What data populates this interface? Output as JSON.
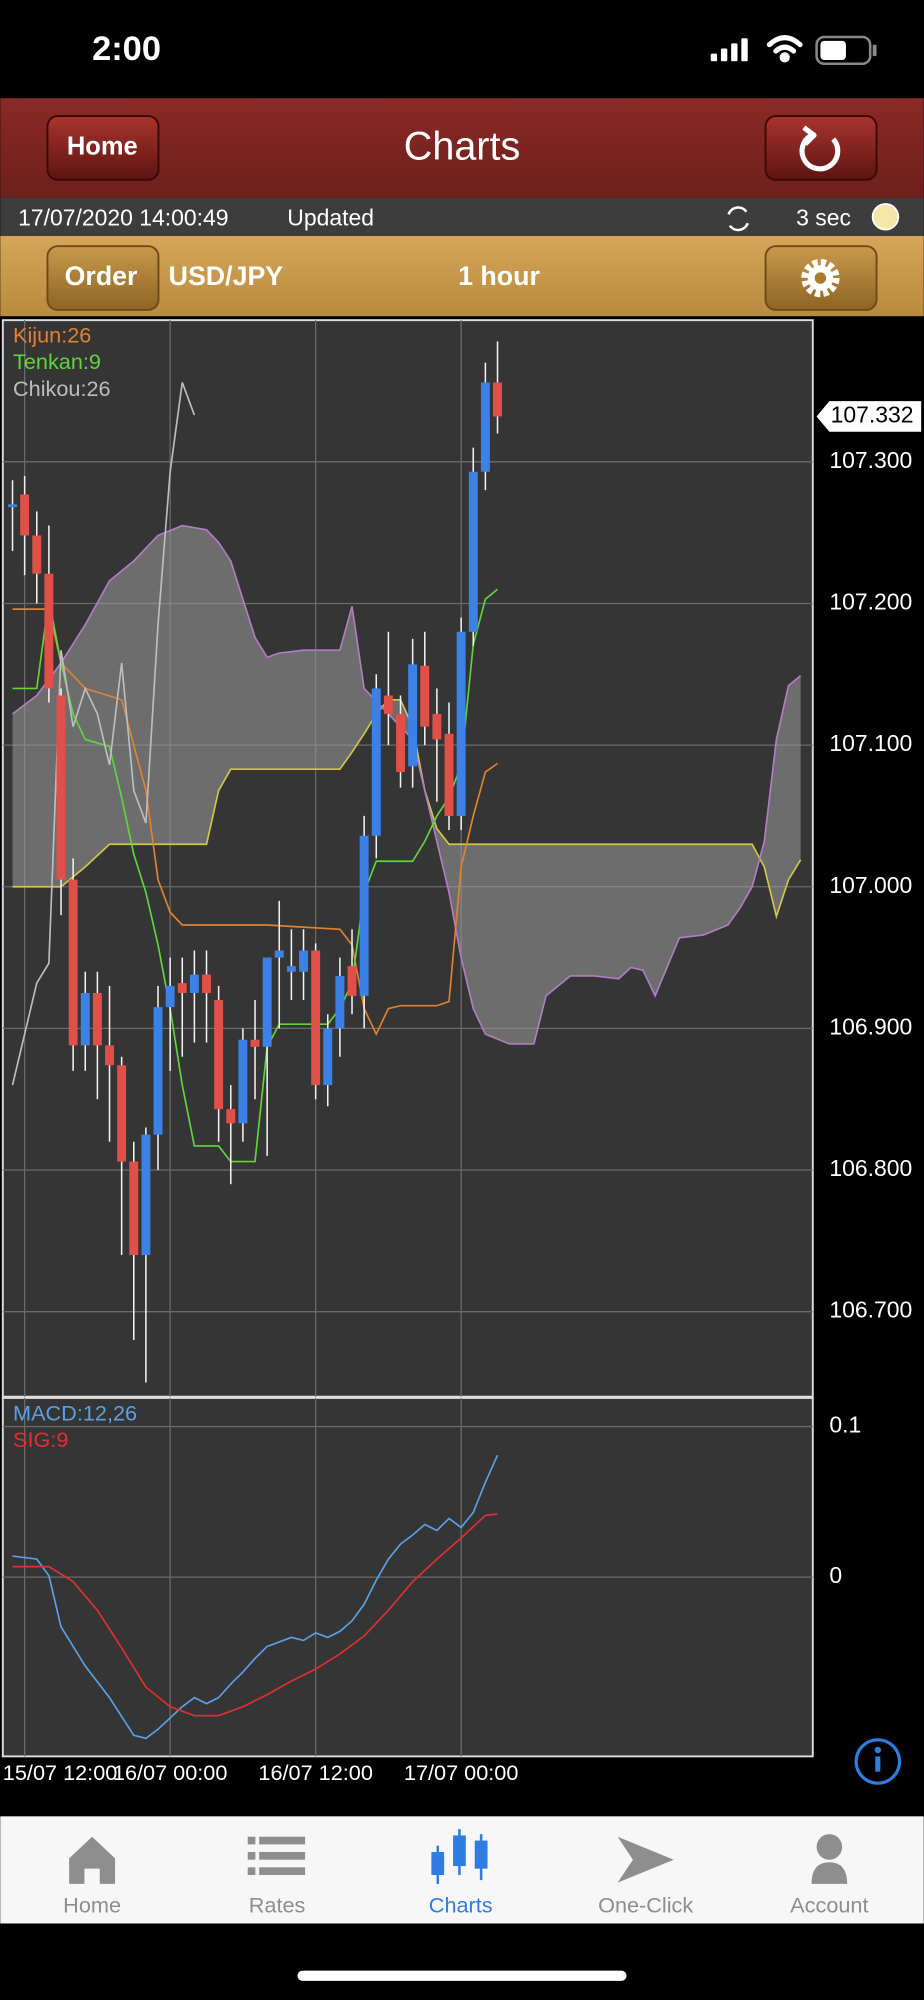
{
  "status_bar": {
    "time": "2:00"
  },
  "header": {
    "home_button": "Home",
    "title": "Charts"
  },
  "info_bar": {
    "timestamp": "17/07/2020 14:00:49",
    "status": "Updated",
    "interval": "3 sec"
  },
  "order_bar": {
    "order_button": "Order",
    "pair": "USD/JPY",
    "timeframe": "1 hour"
  },
  "chart_data": [
    {
      "type": "candlestick",
      "xlim": [
        -1.8,
        65
      ],
      "ylim": [
        106.64,
        107.4
      ],
      "yticks": [
        {
          "value": 107.3,
          "label": "107.300"
        },
        {
          "value": 107.2,
          "label": "107.200"
        },
        {
          "value": 107.1,
          "label": "107.100"
        },
        {
          "value": 107.0,
          "label": "107.000"
        },
        {
          "value": 106.9,
          "label": "106.900"
        },
        {
          "value": 106.8,
          "label": "106.800"
        },
        {
          "value": 106.7,
          "label": "106.700"
        }
      ],
      "grid": true,
      "last_price": 107.332,
      "candles": {
        "up_color": "#3c82e6",
        "down_color": "#e05048",
        "x": [
          -1,
          0,
          1,
          2,
          3,
          4,
          5,
          6,
          7,
          8,
          9,
          10,
          11,
          12,
          13,
          14,
          15,
          16,
          17,
          18,
          19,
          20,
          21,
          22,
          23,
          24,
          25,
          26,
          27,
          28,
          29,
          30,
          31,
          32,
          33,
          34,
          35,
          36,
          37,
          38,
          39
        ],
        "open": [
          107.268,
          107.277,
          107.248,
          107.221,
          107.135,
          107.005,
          106.888,
          106.925,
          106.888,
          106.874,
          106.806,
          106.74,
          106.825,
          106.915,
          106.932,
          106.925,
          106.938,
          106.92,
          106.843,
          106.833,
          106.892,
          106.887,
          106.95,
          106.94,
          106.94,
          106.955,
          106.86,
          106.9,
          106.944,
          106.923,
          107.036,
          107.135,
          107.122,
          107.085,
          107.156,
          107.122,
          107.108,
          107.05,
          107.18,
          107.293,
          107.356
        ],
        "high": [
          107.287,
          107.29,
          107.265,
          107.255,
          107.14,
          107.02,
          106.94,
          106.94,
          106.93,
          106.88,
          106.82,
          106.83,
          106.93,
          106.95,
          106.95,
          106.955,
          106.955,
          106.93,
          106.86,
          106.9,
          106.92,
          106.95,
          106.99,
          106.97,
          106.97,
          106.96,
          106.91,
          106.95,
          106.97,
          107.05,
          107.15,
          107.18,
          107.135,
          107.175,
          107.18,
          107.14,
          107.13,
          107.19,
          107.31,
          107.37,
          107.385
        ],
        "low": [
          107.237,
          107.22,
          107.2,
          107.13,
          106.98,
          106.87,
          106.87,
          106.85,
          106.82,
          106.74,
          106.68,
          106.65,
          106.8,
          106.87,
          106.88,
          106.89,
          106.89,
          106.82,
          106.79,
          106.82,
          106.85,
          106.81,
          106.9,
          106.92,
          106.92,
          106.85,
          106.845,
          106.88,
          106.91,
          106.9,
          107.02,
          107.1,
          107.07,
          107.07,
          107.1,
          107.06,
          107.04,
          107.04,
          107.17,
          107.28,
          107.32
        ],
        "close": [
          107.27,
          107.248,
          107.221,
          107.14,
          107.005,
          106.888,
          106.925,
          106.888,
          106.874,
          106.806,
          106.74,
          106.825,
          106.915,
          106.93,
          106.925,
          106.938,
          106.925,
          106.843,
          106.833,
          106.892,
          106.887,
          106.95,
          106.955,
          106.944,
          106.955,
          106.86,
          106.9,
          106.937,
          106.923,
          107.036,
          107.14,
          107.122,
          107.081,
          107.157,
          107.113,
          107.104,
          107.05,
          107.18,
          107.293,
          107.356,
          107.332
        ]
      },
      "cloud": {
        "fill": "#9a9a9a",
        "span_a_color": "#d2c64a",
        "span_b_color": "#b27cc0",
        "x": [
          -1,
          1,
          3,
          5,
          7,
          9,
          11,
          13,
          15,
          16,
          17,
          18,
          19,
          20,
          21,
          23,
          26,
          27,
          28,
          29,
          30,
          31,
          32,
          33,
          34,
          35,
          36,
          37,
          38,
          40,
          42,
          43,
          45,
          47,
          49,
          50,
          51,
          52,
          54,
          56,
          58,
          59,
          60,
          61,
          62,
          63,
          64
        ],
        "span_a": [
          107.0,
          107.0,
          107.0,
          107.014,
          107.03,
          107.03,
          107.03,
          107.03,
          107.03,
          107.068,
          107.083,
          107.083,
          107.083,
          107.083,
          107.083,
          107.083,
          107.083,
          107.095,
          107.108,
          107.122,
          107.132,
          107.132,
          107.113,
          107.068,
          107.041,
          107.03,
          107.03,
          107.03,
          107.03,
          107.03,
          107.03,
          107.03,
          107.03,
          107.03,
          107.03,
          107.03,
          107.03,
          107.03,
          107.03,
          107.03,
          107.03,
          107.03,
          107.03,
          107.014,
          106.979,
          107.005,
          107.019
        ],
        "span_b": [
          107.122,
          107.135,
          107.158,
          107.185,
          107.216,
          107.23,
          107.248,
          107.255,
          107.252,
          107.243,
          107.23,
          107.203,
          107.176,
          107.162,
          107.165,
          107.167,
          107.167,
          107.198,
          107.14,
          107.131,
          107.122,
          107.113,
          107.104,
          107.068,
          107.032,
          106.996,
          106.95,
          106.914,
          106.896,
          106.889,
          106.889,
          106.923,
          106.937,
          106.937,
          106.935,
          106.943,
          106.941,
          106.923,
          106.964,
          106.966,
          106.973,
          106.985,
          107.0,
          107.032,
          107.104,
          107.142,
          107.149
        ]
      },
      "series": [
        {
          "name": "Kijun:26",
          "color": "#e0822f",
          "x": [
            -1,
            2,
            3,
            5,
            8,
            10,
            11,
            12,
            13,
            20,
            26,
            27,
            28,
            29,
            30,
            31,
            34,
            35,
            36,
            37,
            38,
            39
          ],
          "values": [
            107.196,
            107.196,
            107.158,
            107.14,
            107.132,
            107.068,
            107.005,
            106.982,
            106.973,
            106.973,
            106.97,
            106.959,
            106.914,
            106.896,
            106.914,
            106.916,
            106.916,
            106.919,
            107.014,
            107.05,
            107.081,
            107.087
          ]
        },
        {
          "name": "Tenkan:9",
          "color": "#5ed63a",
          "x": [
            -1,
            1,
            2,
            3,
            4,
            5,
            7,
            8,
            9,
            10,
            11,
            12,
            13,
            14,
            16,
            17,
            19,
            20,
            21,
            25,
            26,
            27,
            28,
            29,
            30,
            32,
            33,
            34,
            35,
            36,
            37,
            38,
            39
          ],
          "values": [
            107.14,
            107.14,
            107.203,
            107.158,
            107.122,
            107.104,
            107.099,
            107.063,
            107.023,
            106.996,
            106.959,
            106.914,
            106.86,
            106.817,
            106.817,
            106.806,
            106.806,
            106.887,
            106.903,
            106.903,
            106.914,
            106.932,
            106.996,
            107.018,
            107.018,
            107.018,
            107.032,
            107.05,
            107.063,
            107.086,
            107.171,
            107.203,
            107.21
          ]
        },
        {
          "name": "Chikou:26",
          "color": "#bdbdbd",
          "x": [
            -1,
            1,
            2,
            3,
            4,
            5,
            6,
            7,
            8,
            9,
            10,
            11,
            12,
            13,
            14
          ],
          "values": [
            106.86,
            106.932,
            106.946,
            107.167,
            107.113,
            107.14,
            107.122,
            107.086,
            107.158,
            107.068,
            107.045,
            107.185,
            107.293,
            107.356,
            107.333
          ]
        }
      ]
    },
    {
      "type": "line",
      "xlim": [
        -1.8,
        65
      ],
      "ylim": [
        -0.119,
        0.119
      ],
      "xticks": [
        {
          "value": 0,
          "label": "15/07 12:00"
        },
        {
          "value": 12,
          "label": "16/07 00:00"
        },
        {
          "value": 24,
          "label": "16/07 12:00"
        },
        {
          "value": 36,
          "label": "17/07 00:00"
        }
      ],
      "yticks": [
        0.1,
        0
      ],
      "grid": true,
      "series": [
        {
          "name": "MACD:12,26",
          "color": "#5aa0e6",
          "x": [
            -1,
            1,
            2,
            3,
            5,
            7,
            9,
            10,
            11,
            13,
            14,
            15,
            16,
            17,
            18,
            19,
            20,
            22,
            23,
            24,
            25,
            26,
            27,
            28,
            29,
            30,
            31,
            32,
            33,
            34,
            35,
            36,
            37,
            38,
            39
          ],
          "values": [
            0.014,
            0.012,
            0.001,
            -0.033,
            -0.059,
            -0.08,
            -0.105,
            -0.107,
            -0.101,
            -0.086,
            -0.08,
            -0.084,
            -0.08,
            -0.071,
            -0.063,
            -0.054,
            -0.046,
            -0.04,
            -0.042,
            -0.037,
            -0.04,
            -0.036,
            -0.029,
            -0.018,
            -0.002,
            0.012,
            0.022,
            0.028,
            0.035,
            0.031,
            0.039,
            0.033,
            0.043,
            0.063,
            0.081
          ]
        },
        {
          "name": "SIG:9",
          "color": "#e03030",
          "x": [
            -1,
            2,
            4,
            6,
            8,
            10,
            12,
            14,
            16,
            18,
            20,
            22,
            24,
            26,
            28,
            30,
            32,
            34,
            36,
            38,
            39
          ],
          "values": [
            0.007,
            0.007,
            -0.003,
            -0.022,
            -0.047,
            -0.073,
            -0.086,
            -0.092,
            -0.092,
            -0.086,
            -0.078,
            -0.069,
            -0.061,
            -0.051,
            -0.039,
            -0.022,
            -0.003,
            0.012,
            0.026,
            0.041,
            0.042
          ]
        }
      ]
    }
  ],
  "tab_bar": {
    "active": 2,
    "active_color": "#2f7de1",
    "color": "#8e8e8e",
    "tabs": [
      {
        "label": "Home"
      },
      {
        "label": "Rates"
      },
      {
        "label": "Charts"
      },
      {
        "label": "One-Click"
      },
      {
        "label": "Account"
      }
    ]
  }
}
